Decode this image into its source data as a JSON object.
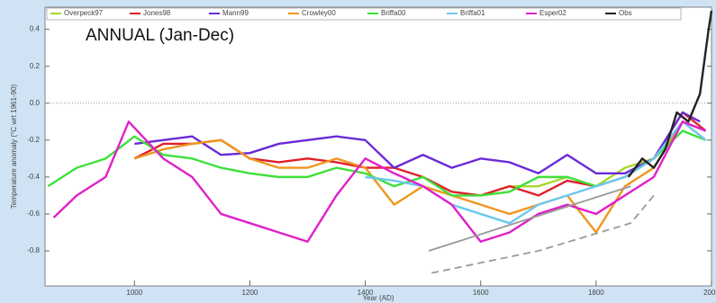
{
  "chart_data": {
    "type": "line",
    "annotation": "ANNUAL (Jan-Dec)",
    "x_label": "Year (AD)",
    "y_label": "Temperature anomaly (°C wrt 1961-90)",
    "xlim": [
      845,
      2000
    ],
    "ylim": [
      -0.99,
      0.52
    ],
    "xticks": [
      1000,
      1200,
      1400,
      1600,
      1800,
      2000
    ],
    "yticks": [
      0.4,
      0.2,
      {
        "value": 0,
        "label": "0.0"
      },
      -0.2,
      -0.4,
      -0.6,
      -0.8
    ],
    "zero_line": true,
    "legend": "top",
    "series": [
      {
        "name": "Overpeck97",
        "color": "#a8d82a",
        "x": [
          1600,
          1650,
          1700,
          1750,
          1800,
          1850,
          1900,
          1950,
          1990
        ],
        "values": [
          -0.5,
          -0.45,
          -0.45,
          -0.4,
          -0.45,
          -0.35,
          -0.3,
          -0.1,
          -0.15
        ]
      },
      {
        "name": "Jones98",
        "color": "#e0202a",
        "x": [
          1000,
          1050,
          1100,
          1150,
          1200,
          1250,
          1300,
          1350,
          1400,
          1450,
          1500,
          1550,
          1600,
          1650,
          1700,
          1750,
          1800,
          1850,
          1900,
          1950,
          1990
        ],
        "values": [
          -0.3,
          -0.22,
          -0.22,
          -0.2,
          -0.3,
          -0.32,
          -0.3,
          -0.32,
          -0.35,
          -0.35,
          -0.4,
          -0.48,
          -0.5,
          -0.45,
          -0.5,
          -0.42,
          -0.45,
          -0.4,
          -0.3,
          -0.05,
          -0.15
        ]
      },
      {
        "name": "Mann99",
        "color": "#6a2ad8",
        "x": [
          1000,
          1050,
          1100,
          1150,
          1200,
          1250,
          1300,
          1350,
          1400,
          1450,
          1500,
          1550,
          1600,
          1650,
          1700,
          1750,
          1800,
          1850,
          1900,
          1950,
          1980
        ],
        "values": [
          -0.22,
          -0.2,
          -0.18,
          -0.28,
          -0.27,
          -0.22,
          -0.2,
          -0.18,
          -0.2,
          -0.35,
          -0.28,
          -0.35,
          -0.3,
          -0.32,
          -0.38,
          -0.28,
          -0.38,
          -0.38,
          -0.3,
          -0.05,
          -0.1
        ]
      },
      {
        "name": "Crowley00",
        "color": "#f0961e",
        "x": [
          1000,
          1050,
          1100,
          1150,
          1200,
          1250,
          1300,
          1350,
          1400,
          1450,
          1500,
          1550,
          1600,
          1650,
          1700,
          1750,
          1800,
          1850,
          1900,
          1950,
          1990
        ],
        "values": [
          -0.3,
          -0.25,
          -0.22,
          -0.2,
          -0.3,
          -0.35,
          -0.35,
          -0.3,
          -0.35,
          -0.55,
          -0.45,
          -0.5,
          -0.55,
          -0.6,
          -0.55,
          -0.5,
          -0.7,
          -0.45,
          -0.35,
          -0.1,
          -0.2
        ]
      },
      {
        "name": "Briffa00",
        "color": "#3ee03a",
        "x": [
          850,
          900,
          950,
          1000,
          1050,
          1100,
          1150,
          1200,
          1250,
          1300,
          1350,
          1400,
          1450,
          1500,
          1550,
          1600,
          1650,
          1700,
          1750,
          1800,
          1850,
          1900,
          1950,
          1990
        ],
        "values": [
          -0.45,
          -0.35,
          -0.3,
          -0.18,
          -0.28,
          -0.3,
          -0.35,
          -0.38,
          -0.4,
          -0.4,
          -0.35,
          -0.38,
          -0.45,
          -0.4,
          -0.5,
          -0.5,
          -0.48,
          -0.4,
          -0.4,
          -0.45,
          -0.4,
          -0.3,
          -0.15,
          -0.2
        ]
      },
      {
        "name": "Briffa01",
        "color": "#6cc8f0",
        "x": [
          1400,
          1450,
          1500,
          1550,
          1600,
          1650,
          1700,
          1750,
          1800,
          1850,
          1900,
          1950,
          1990
        ],
        "values": [
          -0.4,
          -0.42,
          -0.45,
          -0.55,
          -0.6,
          -0.65,
          -0.55,
          -0.5,
          -0.45,
          -0.4,
          -0.3,
          -0.1,
          -0.2
        ]
      },
      {
        "name": "Esper02",
        "color": "#e020c8",
        "x": [
          860,
          900,
          950,
          990,
          1050,
          1100,
          1150,
          1200,
          1250,
          1300,
          1350,
          1400,
          1450,
          1500,
          1550,
          1600,
          1650,
          1700,
          1750,
          1800,
          1850,
          1900,
          1950,
          1990
        ],
        "values": [
          -0.62,
          -0.5,
          -0.4,
          -0.1,
          -0.3,
          -0.4,
          -0.6,
          -0.65,
          -0.7,
          -0.75,
          -0.5,
          -0.3,
          -0.38,
          -0.45,
          -0.55,
          -0.75,
          -0.7,
          -0.6,
          -0.55,
          -0.6,
          -0.5,
          -0.4,
          -0.1,
          -0.15
        ]
      },
      {
        "name": "Obs",
        "color": "#222222",
        "x": [
          1856,
          1880,
          1900,
          1920,
          1940,
          1960,
          1980,
          1995,
          2000
        ],
        "values": [
          -0.4,
          -0.3,
          -0.35,
          -0.25,
          -0.05,
          -0.1,
          0.05,
          0.4,
          0.5
        ]
      },
      {
        "color": "#999999",
        "x": [
          1510,
          1860
        ],
        "values": [
          -0.8,
          -0.45
        ]
      },
      {
        "color": "#999999",
        "dash": true,
        "x": [
          1515,
          1700,
          1860,
          1900
        ],
        "values": [
          -0.92,
          -0.8,
          -0.65,
          -0.5
        ]
      }
    ]
  }
}
